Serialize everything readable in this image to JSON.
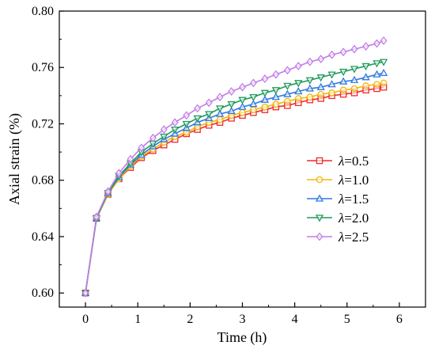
{
  "chart_data": {
    "type": "line",
    "xlabel": "Time (h)",
    "ylabel": "Axial strain (%)",
    "xlim": [
      -0.5,
      6.5
    ],
    "ylim": [
      0.59,
      0.8
    ],
    "xticks": [
      "0",
      "1",
      "2",
      "3",
      "4",
      "5",
      "6"
    ],
    "yticks": [
      "0.60",
      "0.64",
      "0.68",
      "0.72",
      "0.76",
      "0.80"
    ],
    "grid": false,
    "legend": "center-right",
    "x": [
      0,
      0.21,
      0.43,
      0.64,
      0.86,
      1.07,
      1.29,
      1.5,
      1.71,
      1.93,
      2.14,
      2.36,
      2.57,
      2.79,
      3.0,
      3.21,
      3.43,
      3.64,
      3.86,
      4.07,
      4.29,
      4.5,
      4.71,
      4.93,
      5.14,
      5.36,
      5.57,
      5.7
    ],
    "series": [
      {
        "symbol": "λ",
        "label": "=0.5",
        "color": "#ef2b2b",
        "marker": "square",
        "values": [
          0.6,
          0.653,
          0.67,
          0.681,
          0.689,
          0.696,
          0.701,
          0.705,
          0.709,
          0.713,
          0.716,
          0.719,
          0.721,
          0.724,
          0.726,
          0.728,
          0.73,
          0.732,
          0.733,
          0.735,
          0.737,
          0.738,
          0.74,
          0.741,
          0.742,
          0.744,
          0.745,
          0.746
        ]
      },
      {
        "symbol": "λ",
        "label": "=1.0",
        "color": "#f2b705",
        "marker": "circle",
        "values": [
          0.6,
          0.653,
          0.67,
          0.681,
          0.69,
          0.697,
          0.702,
          0.707,
          0.711,
          0.714,
          0.718,
          0.721,
          0.723,
          0.726,
          0.728,
          0.73,
          0.732,
          0.734,
          0.736,
          0.738,
          0.739,
          0.741,
          0.742,
          0.744,
          0.745,
          0.747,
          0.748,
          0.749
        ]
      },
      {
        "symbol": "λ",
        "label": "=1.5",
        "color": "#2f79e0",
        "marker": "triangle-up",
        "values": [
          0.6,
          0.653,
          0.671,
          0.682,
          0.691,
          0.698,
          0.704,
          0.709,
          0.713,
          0.717,
          0.721,
          0.724,
          0.727,
          0.729,
          0.732,
          0.734,
          0.737,
          0.739,
          0.741,
          0.743,
          0.745,
          0.746,
          0.748,
          0.75,
          0.751,
          0.753,
          0.755,
          0.756
        ]
      },
      {
        "symbol": "λ",
        "label": "=2.0",
        "color": "#1f9a5a",
        "marker": "triangle-down",
        "values": [
          0.6,
          0.653,
          0.671,
          0.683,
          0.692,
          0.7,
          0.706,
          0.711,
          0.716,
          0.72,
          0.724,
          0.727,
          0.731,
          0.734,
          0.737,
          0.739,
          0.742,
          0.744,
          0.747,
          0.749,
          0.751,
          0.753,
          0.755,
          0.757,
          0.759,
          0.761,
          0.763,
          0.764
        ]
      },
      {
        "symbol": "λ",
        "label": "=2.5",
        "color": "#c27ce8",
        "marker": "diamond",
        "values": [
          0.6,
          0.654,
          0.672,
          0.685,
          0.695,
          0.703,
          0.71,
          0.716,
          0.721,
          0.726,
          0.731,
          0.735,
          0.739,
          0.743,
          0.746,
          0.749,
          0.752,
          0.755,
          0.758,
          0.761,
          0.764,
          0.766,
          0.769,
          0.771,
          0.773,
          0.775,
          0.777,
          0.779
        ]
      }
    ]
  }
}
